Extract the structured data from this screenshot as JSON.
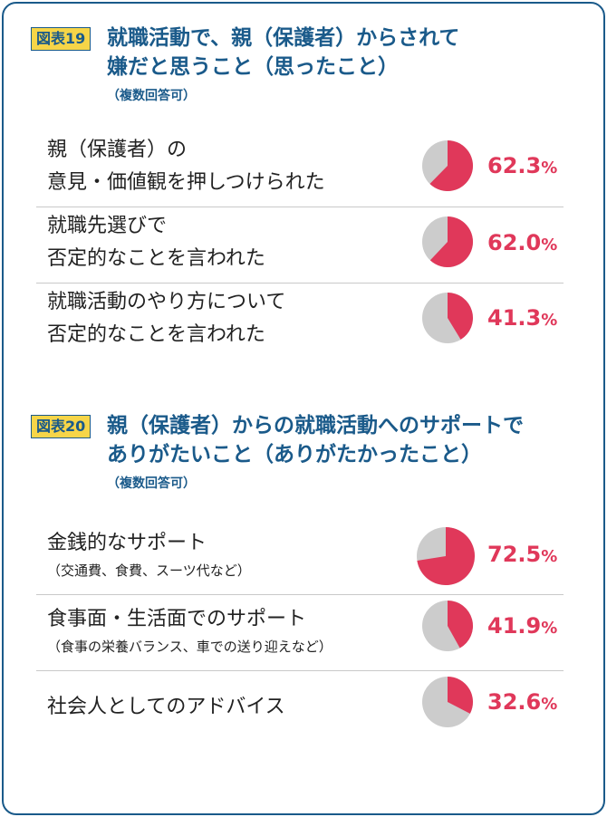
{
  "colors": {
    "accent": "#e0385a",
    "remainder": "#cccccc",
    "title": "#1a5a8a",
    "badge_bg": "#f6d548"
  },
  "figures": [
    {
      "badge": "図表19",
      "title_line1": "就職活動で、親（保護者）からされて",
      "title_line2": "嫌だと思うこと（思ったこと）",
      "note": "（複数回答可）",
      "items": [
        {
          "line1": "親（保護者）の",
          "line2": "意見・価値観を押しつけられた",
          "value_text": "62.3",
          "unit": "%"
        },
        {
          "line1": "就職先選びで",
          "line2": "否定的なことを言われた",
          "value_text": "62.0",
          "unit": "%"
        },
        {
          "line1": "就職活動のやり方について",
          "line2": "否定的なことを言われた",
          "value_text": "41.3",
          "unit": "%"
        }
      ]
    },
    {
      "badge": "図表20",
      "title_line1": "親（保護者）からの就職活動へのサポートで",
      "title_line2": "ありがたいこと（ありがたかったこと）",
      "note": "（複数回答可）",
      "items": [
        {
          "line1": "金銭的なサポート",
          "sub": "（交通費、食費、スーツ代など）",
          "value_text": "72.5",
          "unit": "%"
        },
        {
          "line1": "食事面・生活面でのサポート",
          "sub": "（食事の栄養バランス、車での送り迎えなど）",
          "value_text": "41.9",
          "unit": "%"
        },
        {
          "line1": "社会人としてのアドバイス",
          "value_text": "32.6",
          "unit": "%"
        }
      ]
    }
  ],
  "chart_data": [
    {
      "type": "pie",
      "title": "就職活動で、親（保護者）からされて嫌だと思うこと（思ったこと）",
      "categories": [
        "親（保護者）の意見・価値観を押しつけられた",
        "就職先選びで否定的なことを言われた",
        "就職活動のやり方について否定的なことを言われた"
      ],
      "values": [
        62.3,
        62.0,
        41.3
      ]
    },
    {
      "type": "pie",
      "title": "親（保護者）からの就職活動へのサポートでありがたいこと（ありがたかったこと）",
      "categories": [
        "金銭的なサポート",
        "食事面・生活面でのサポート",
        "社会人としてのアドバイス"
      ],
      "values": [
        72.5,
        41.9,
        32.6
      ]
    }
  ]
}
